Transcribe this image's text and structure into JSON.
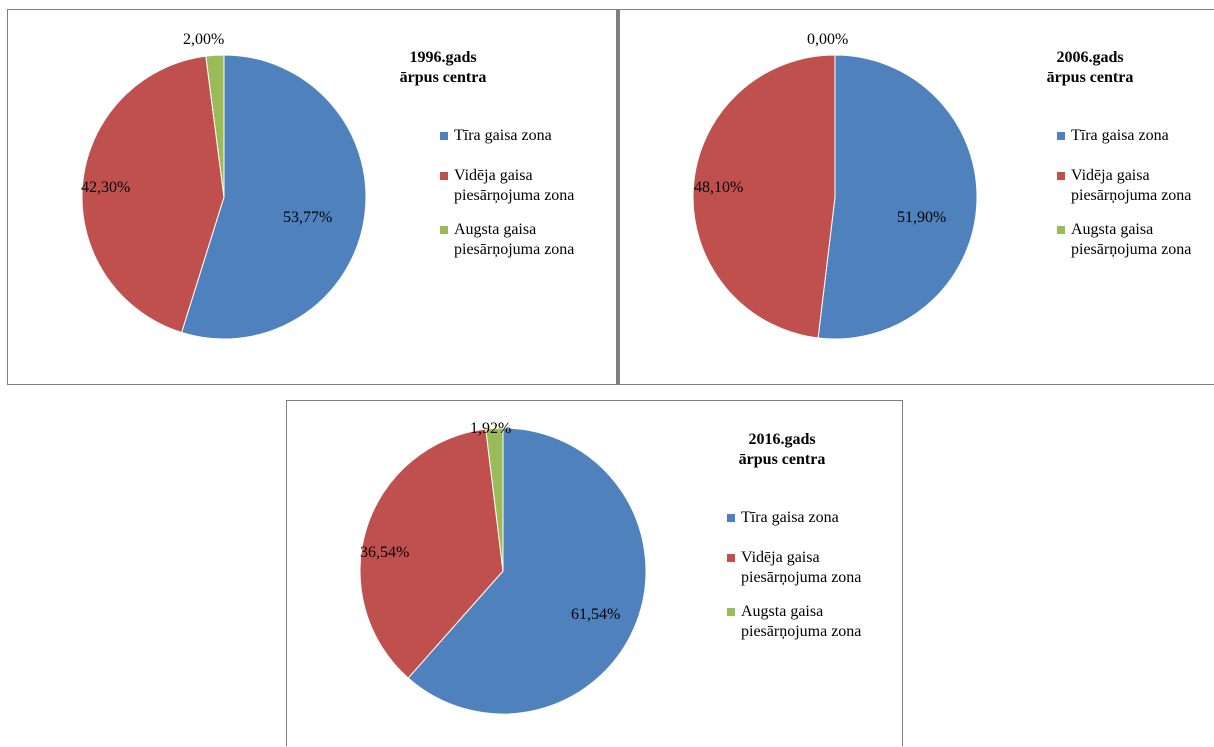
{
  "legend_entries": [
    {
      "label_lines": [
        "Tīra gaisa zona"
      ],
      "color": "#4F81BD"
    },
    {
      "label_lines": [
        "Vidēja gaisa",
        "piesārņojuma zona"
      ],
      "color": "#C0504D"
    },
    {
      "label_lines": [
        "Augsta gaisa",
        "piesārņojuma zona"
      ],
      "color": "#9BBB59"
    }
  ],
  "chart_data": [
    {
      "type": "pie",
      "title_lines": [
        "1996.gads",
        "ārpus centra"
      ],
      "categories": [
        "Tīra gaisa zona",
        "Vidēja gaisa piesārņojuma zona",
        "Augsta gaisa piesārņojuma zona"
      ],
      "values": [
        53.77,
        42.3,
        2.0
      ],
      "value_labels": [
        "53,77%",
        "42,30%",
        "2,00%"
      ],
      "colors": [
        "#4F81BD",
        "#C0504D",
        "#9BBB59"
      ],
      "legend_placement": "right"
    },
    {
      "type": "pie",
      "title_lines": [
        "2006.gads",
        "ārpus centra"
      ],
      "categories": [
        "Tīra gaisa zona",
        "Vidēja gaisa piesārņojuma zona",
        "Augsta gaisa piesārņojuma zona"
      ],
      "values": [
        51.9,
        48.1,
        0.0
      ],
      "value_labels": [
        "51,90%",
        "48,10%",
        "0,00%"
      ],
      "colors": [
        "#4F81BD",
        "#C0504D",
        "#9BBB59"
      ],
      "legend_placement": "right"
    },
    {
      "type": "pie",
      "title_lines": [
        "2016.gads",
        "ārpus centra"
      ],
      "categories": [
        "Tīra gaisa zona",
        "Vidēja gaisa piesārņojuma zona",
        "Augsta gaisa piesārņojuma zona"
      ],
      "values": [
        61.54,
        36.54,
        1.92
      ],
      "value_labels": [
        "61,54%",
        "36,54%",
        "1,92%"
      ],
      "colors": [
        "#4F81BD",
        "#C0504D",
        "#9BBB59"
      ],
      "legend_placement": "right"
    }
  ]
}
